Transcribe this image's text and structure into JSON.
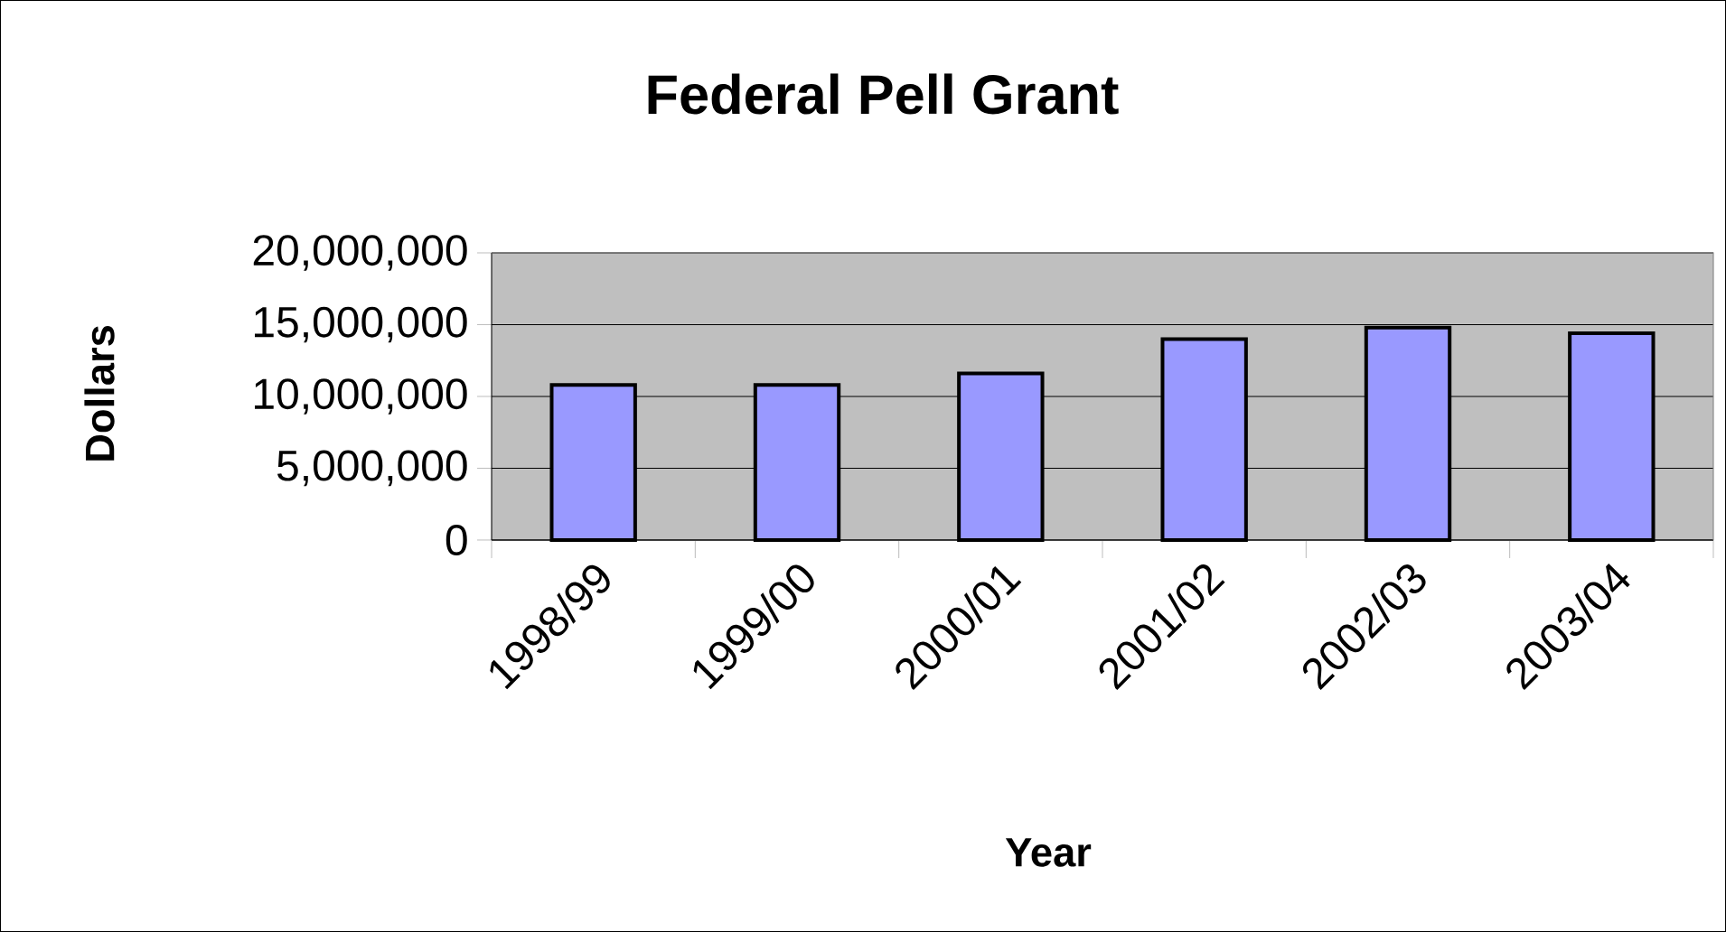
{
  "chart_data": {
    "type": "bar",
    "title": "Federal Pell Grant",
    "xlabel": "Year",
    "ylabel": "Dollars",
    "categories": [
      "1998/99",
      "1999/00",
      "2000/01",
      "2001/02",
      "2002/03",
      "2003/04"
    ],
    "values": [
      10800000,
      10800000,
      11600000,
      14000000,
      14800000,
      14400000
    ],
    "color": "#9999ff",
    "ylim": [
      0,
      20000000
    ],
    "yticks": [
      0,
      {
        "value": 5000000,
        "label": "5,000,000"
      },
      {
        "value": 10000000,
        "label": "10,000,000"
      },
      {
        "value": 15000000,
        "label": "15,000,000"
      },
      {
        "value": 20000000,
        "label": "20,000,000"
      }
    ],
    "grid": "y"
  }
}
